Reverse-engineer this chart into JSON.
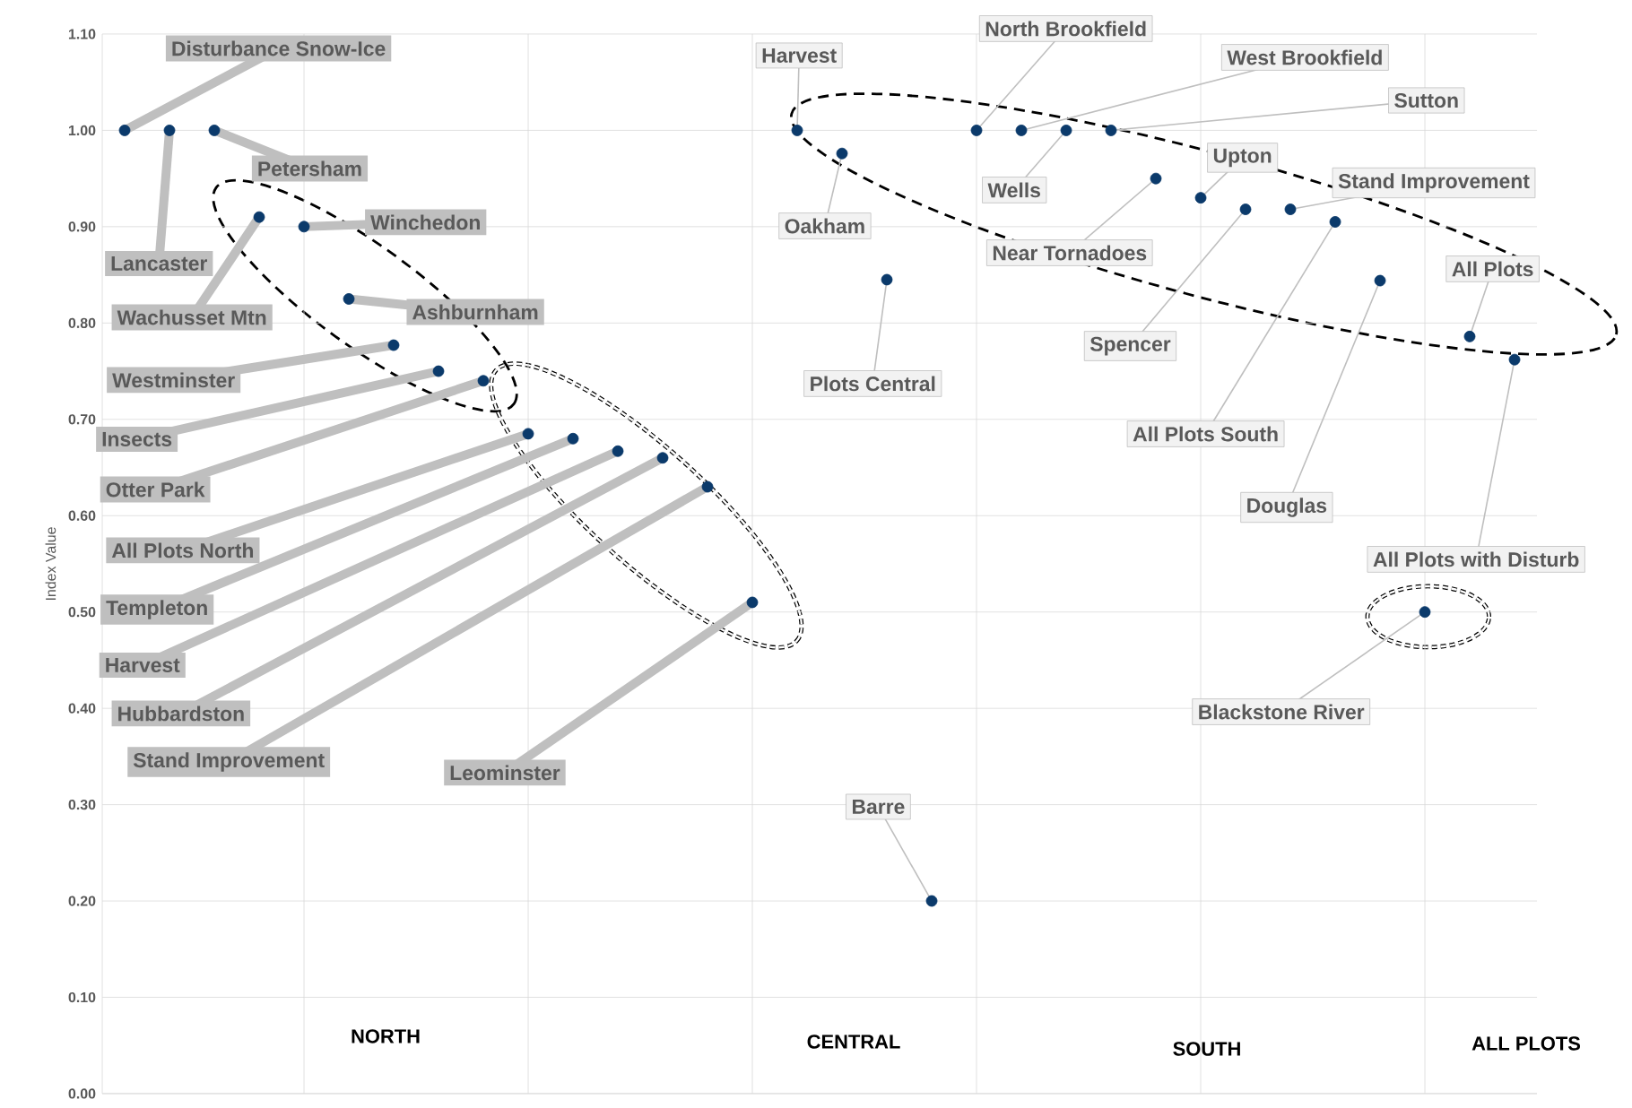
{
  "chart_data": {
    "type": "scatter",
    "ylabel": "Index Value",
    "color": "#0b3a6b",
    "marker": "circle",
    "grid": true,
    "categories": [
      null,
      null,
      null,
      null,
      null,
      null,
      null,
      null,
      null,
      null,
      null,
      null,
      null,
      null,
      null,
      null,
      null,
      null,
      null,
      null,
      null,
      null,
      null,
      null,
      null,
      null,
      null,
      null,
      null,
      null,
      null,
      null
    ],
    "values": [
      1.0,
      1.0,
      1.0,
      0.91,
      0.9,
      0.825,
      0.777,
      0.75,
      0.74,
      0.685,
      0.68,
      0.667,
      0.66,
      0.63,
      0.51,
      1.0,
      0.976,
      0.845,
      0.2,
      1.0,
      1.0,
      1.0,
      1.0,
      0.95,
      0.93,
      0.918,
      0.918,
      0.905,
      0.844,
      0.5,
      0.786,
      0.762
    ],
    "ylim": [
      0,
      1.1
    ],
    "yticks": [
      {
        "value": 0,
        "label": "0.00"
      },
      {
        "value": 0.1,
        "label": "0.10"
      },
      {
        "value": 0.2,
        "label": "0.20"
      },
      {
        "value": 0.3,
        "label": "0.30"
      },
      {
        "value": 0.4,
        "label": "0.40"
      },
      {
        "value": 0.5,
        "label": "0.50"
      },
      {
        "value": 0.6,
        "label": "0.60"
      },
      {
        "value": 0.7,
        "label": "0.70"
      },
      {
        "value": 0.8,
        "label": "0.80"
      },
      {
        "value": 0.9,
        "label": "0.90"
      },
      {
        "value": 1.0,
        "label": "1.00"
      },
      {
        "value": 1.1,
        "label": "1.10"
      }
    ],
    "annotations": [
      "Disturbance Snow-Ice",
      "Lancaster",
      "Petersham",
      "Wachusset Mtn",
      "Winchedon",
      "Ashburnham",
      "Westminster",
      "Insects",
      "Otter Park",
      "All Plots North",
      "Templeton",
      "Harvest",
      "Hubbardston",
      "Stand Improvement",
      "Leominster",
      "Harvest",
      "Oakham",
      "Plots Central",
      "Barre",
      "North Brookfield",
      "West Brookfield",
      "Wells",
      "Sutton",
      "Near Tornadoes",
      "Upton",
      "Spencer",
      "Stand Improvement",
      "All Plots South",
      "Douglas",
      "Blackstone River",
      "All Plots",
      "All Plots with Disturb",
      "NORTH",
      "CENTRAL",
      "SOUTH",
      "ALL PLOTS"
    ]
  }
}
